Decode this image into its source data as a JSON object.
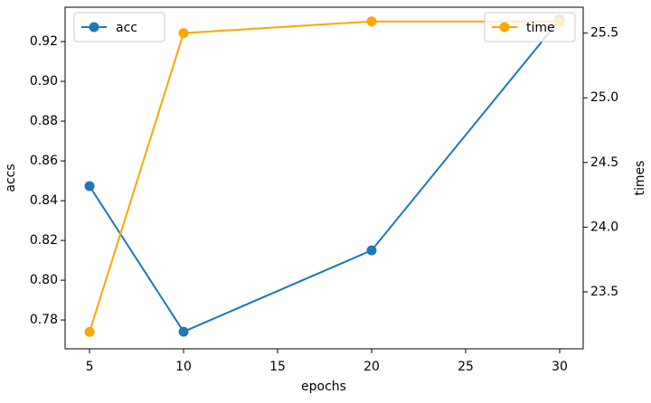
{
  "chart_data": {
    "type": "line",
    "x": [
      5,
      10,
      20,
      30
    ],
    "xlabel": "epochs",
    "ylabel": "accs",
    "y2label": "times",
    "xlim": [
      3.7,
      31.25
    ],
    "xticks": [
      5,
      10,
      15,
      20,
      25,
      30
    ],
    "ylim": [
      0.7655,
      0.9373
    ],
    "yticks": [
      0.78,
      {
        "value": 0.8,
        "label": "0.80"
      },
      0.82,
      0.84,
      0.86,
      0.88,
      {
        "value": 0.9,
        "label": "0.90"
      },
      0.92
    ],
    "y2lim": [
      23.06,
      25.7
    ],
    "y2ticks": [
      23.5,
      {
        "value": 24,
        "label": "24.0"
      },
      24.5,
      {
        "value": 25,
        "label": "25.0"
      },
      25.5
    ],
    "series": [
      {
        "name": "acc",
        "color": "#1f77b4",
        "values": [
          0.8473,
          0.7741,
          0.815,
          0.931
        ],
        "legend": "upper left"
      },
      {
        "name": "time",
        "color": "#ffa500",
        "axis": "y2",
        "values": [
          23.19,
          25.5,
          25.59,
          25.59
        ],
        "legend": "upper right"
      }
    ]
  }
}
